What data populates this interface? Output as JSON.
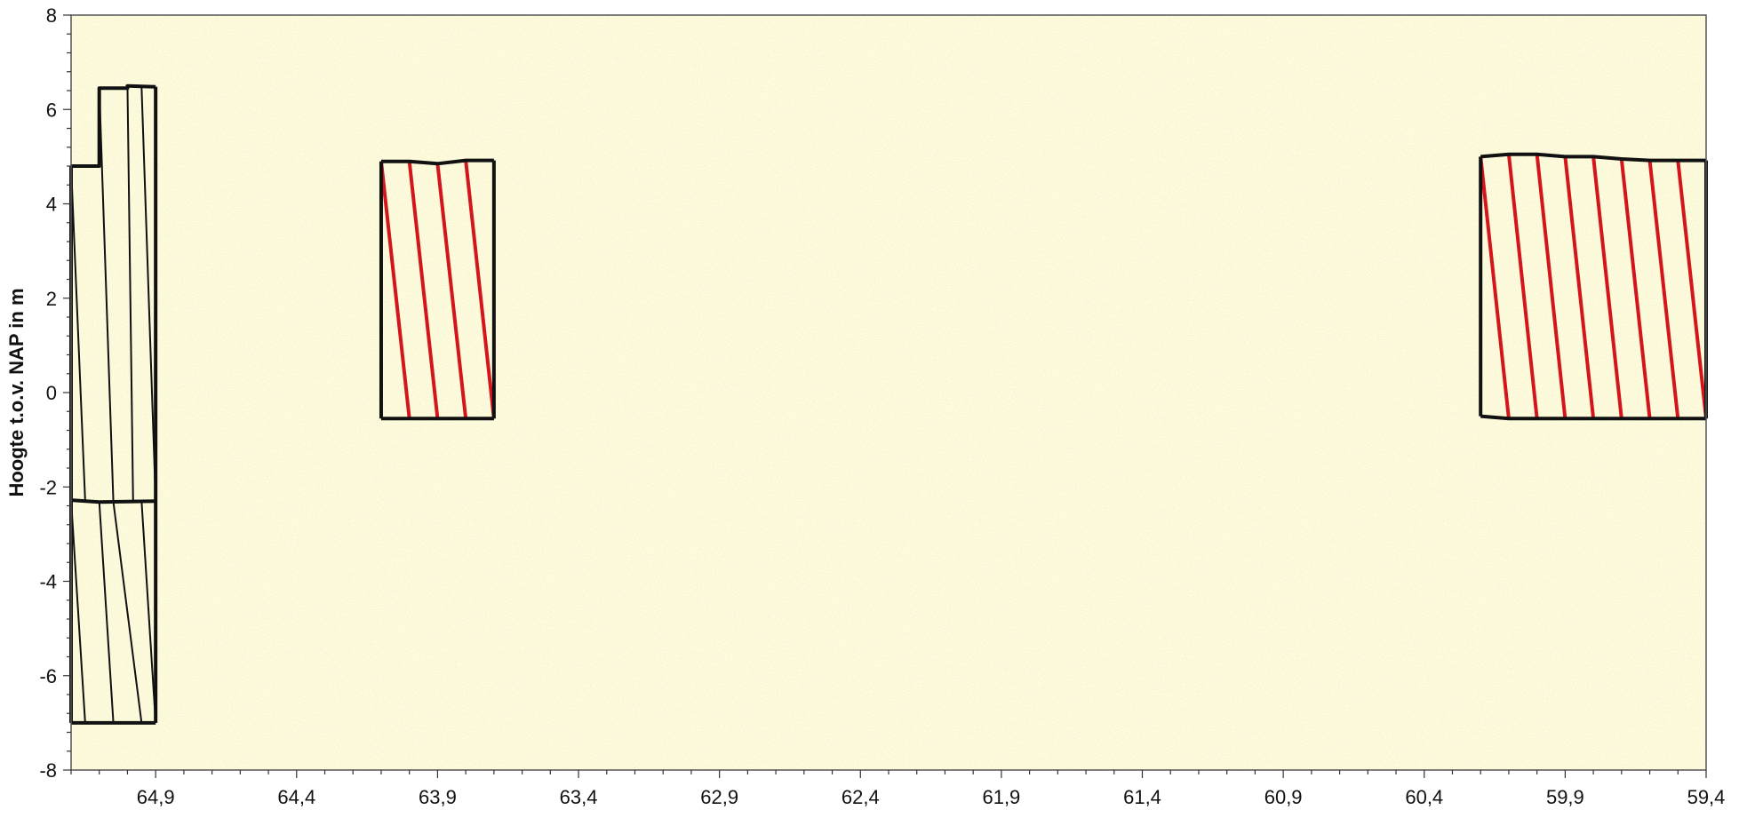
{
  "chart_data": {
    "type": "line",
    "title": "",
    "xlabel": "",
    "ylabel": "Hoogte t.o.v. NAP in m",
    "xlim": [
      65.2,
      59.4
    ],
    "ylim": [
      -8,
      8
    ],
    "x_axis_reversed": true,
    "x_ticks": [
      64.9,
      64.4,
      63.9,
      63.4,
      62.9,
      62.4,
      61.9,
      61.4,
      60.9,
      60.4,
      59.9,
      59.4
    ],
    "x_tick_labels": [
      "64,9",
      "64,4",
      "63,9",
      "63,4",
      "62,9",
      "62,4",
      "61,9",
      "61,4",
      "60,9",
      "60,4",
      "59,9",
      "59,4"
    ],
    "y_ticks": [
      -8,
      -6,
      -4,
      -2,
      0,
      2,
      4,
      6,
      8
    ],
    "y_tick_labels": [
      "-8",
      "-6",
      "-4",
      "-2",
      "0",
      "2",
      "4",
      "6",
      "8"
    ],
    "grid": false,
    "colors": {
      "plot_background": "#fefcdc",
      "outline": "#111111",
      "hatch_black": "#111111",
      "hatch_red": "#d4161c"
    },
    "series": [
      {
        "hatch_color": "#111111",
        "top": [
          [
            65.2,
            4.8
          ],
          [
            65.1,
            4.8
          ],
          [
            65.1,
            6.45
          ],
          [
            65.0,
            6.45
          ],
          [
            65.0,
            6.5
          ],
          [
            64.9,
            6.48
          ]
        ],
        "bottom": [
          [
            65.2,
            -7.0
          ],
          [
            64.9,
            -7.0
          ]
        ],
        "divider": [
          [
            65.2,
            -2.28
          ],
          [
            65.1,
            -2.32
          ],
          [
            64.9,
            -2.3
          ]
        ],
        "hatch_lines": [
          [
            [
              65.2,
              4.8
            ],
            [
              65.15,
              -2.3
            ]
          ],
          [
            [
              65.1,
              6.45
            ],
            [
              65.05,
              -2.32
            ]
          ],
          [
            [
              65.0,
              6.5
            ],
            [
              64.98,
              -2.31
            ]
          ],
          [
            [
              64.95,
              6.48
            ],
            [
              64.9,
              -2.3
            ]
          ],
          [
            [
              65.2,
              -2.28
            ],
            [
              65.15,
              -7.0
            ]
          ],
          [
            [
              65.1,
              -2.32
            ],
            [
              65.05,
              -7.0
            ]
          ],
          [
            [
              65.05,
              -2.32
            ],
            [
              64.95,
              -7.0
            ]
          ],
          [
            [
              64.95,
              -2.3
            ],
            [
              64.9,
              -7.0
            ]
          ]
        ]
      },
      {
        "hatch_color": "#d4161c",
        "top": [
          [
            64.1,
            4.9
          ],
          [
            64.0,
            4.9
          ],
          [
            63.9,
            4.85
          ],
          [
            63.8,
            4.92
          ],
          [
            63.7,
            4.92
          ]
        ],
        "bottom": [
          [
            64.1,
            -0.55
          ],
          [
            63.7,
            -0.55
          ]
        ],
        "hatch_lines": [
          [
            [
              64.1,
              4.9
            ],
            [
              64.0,
              -0.55
            ]
          ],
          [
            [
              64.0,
              4.9
            ],
            [
              63.9,
              -0.55
            ]
          ],
          [
            [
              63.9,
              4.85
            ],
            [
              63.8,
              -0.55
            ]
          ],
          [
            [
              63.8,
              4.92
            ],
            [
              63.7,
              -0.55
            ]
          ]
        ]
      },
      {
        "hatch_color": "#d4161c",
        "top": [
          [
            60.2,
            5.0
          ],
          [
            60.1,
            5.05
          ],
          [
            60.0,
            5.05
          ],
          [
            59.9,
            5.0
          ],
          [
            59.8,
            5.0
          ],
          [
            59.7,
            4.95
          ],
          [
            59.6,
            4.92
          ],
          [
            59.5,
            4.92
          ],
          [
            59.4,
            4.92
          ]
        ],
        "bottom": [
          [
            60.2,
            -0.5
          ],
          [
            60.1,
            -0.55
          ],
          [
            59.4,
            -0.55
          ]
        ],
        "hatch_lines": [
          [
            [
              60.2,
              5.0
            ],
            [
              60.1,
              -0.55
            ]
          ],
          [
            [
              60.1,
              5.05
            ],
            [
              60.0,
              -0.55
            ]
          ],
          [
            [
              60.0,
              5.05
            ],
            [
              59.9,
              -0.55
            ]
          ],
          [
            [
              59.9,
              5.0
            ],
            [
              59.8,
              -0.55
            ]
          ],
          [
            [
              59.8,
              5.0
            ],
            [
              59.7,
              -0.55
            ]
          ],
          [
            [
              59.7,
              4.95
            ],
            [
              59.6,
              -0.55
            ]
          ],
          [
            [
              59.6,
              4.92
            ],
            [
              59.5,
              -0.55
            ]
          ],
          [
            [
              59.5,
              4.92
            ],
            [
              59.4,
              -0.55
            ]
          ]
        ]
      }
    ]
  }
}
